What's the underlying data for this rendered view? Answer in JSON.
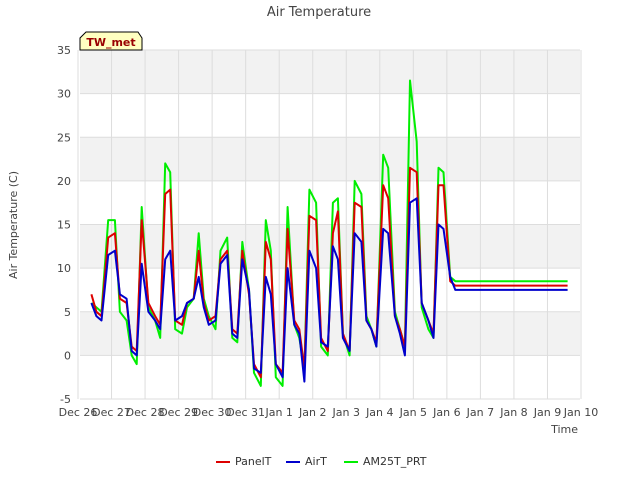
{
  "chart_data": {
    "type": "line",
    "title": "Air Temperature",
    "xlabel": "Time",
    "ylabel": "Air Temperature (C)",
    "ylim": [
      -5,
      35
    ],
    "xlim": [
      0,
      15
    ],
    "yticks": [
      -5,
      0,
      5,
      10,
      15,
      20,
      25,
      30,
      35
    ],
    "x_ticks": [
      "Dec 26",
      "Dec 27",
      "Dec 28",
      "Dec 29",
      "Dec 30",
      "Dec 31",
      "Jan 1",
      "Jan 2",
      "Jan 3",
      "Jan 4",
      "Jan 5",
      "Jan 6",
      "Jan 7",
      "Jan 8",
      "Jan 9",
      "Jan 10"
    ],
    "grid": true,
    "legend_position": "bottom",
    "annotation": "TW_met",
    "x": [
      0.4,
      0.55,
      0.7,
      0.9,
      1.1,
      1.25,
      1.45,
      1.6,
      1.75,
      1.9,
      2.1,
      2.3,
      2.45,
      2.6,
      2.75,
      2.9,
      3.1,
      3.25,
      3.45,
      3.6,
      3.75,
      3.9,
      4.1,
      4.25,
      4.45,
      4.6,
      4.75,
      4.9,
      5.1,
      5.25,
      5.45,
      5.6,
      5.75,
      5.9,
      6.1,
      6.25,
      6.45,
      6.6,
      6.75,
      6.9,
      7.1,
      7.25,
      7.45,
      7.6,
      7.75,
      7.9,
      8.1,
      8.25,
      8.45,
      8.6,
      8.75,
      8.9,
      9.1,
      9.25,
      9.45,
      9.6,
      9.75,
      9.9,
      10.1,
      10.25,
      10.45,
      10.6,
      10.75,
      10.9,
      11.1,
      11.25,
      11.45,
      11.6,
      11.75,
      11.9,
      12.1,
      12.25,
      12.45,
      12.6,
      12.75,
      12.9,
      13.1,
      13.25,
      13.45,
      13.6,
      13.75,
      13.9,
      14.1,
      14.25,
      14.45,
      14.6
    ],
    "series": [
      {
        "name": "PanelT",
        "color": "#dd0000",
        "values": [
          7.0,
          5.0,
          4.5,
          13.5,
          14.0,
          6.5,
          6.0,
          1.0,
          0.5,
          15.5,
          6.0,
          4.5,
          3.5,
          18.5,
          19.0,
          4.0,
          3.5,
          6.0,
          6.5,
          12.0,
          6.0,
          4.0,
          4.5,
          11.0,
          12.0,
          3.0,
          2.5,
          12.0,
          7.0,
          -1.0,
          -2.5,
          13.0,
          11.0,
          -1.0,
          -2.0,
          14.5,
          4.0,
          3.0,
          -1.5,
          16.0,
          15.5,
          2.0,
          0.5,
          14.0,
          16.5,
          2.5,
          0.5,
          17.5,
          17.0,
          4.0,
          3.0,
          1.5,
          19.5,
          18.0,
          4.5,
          3.0,
          1.0,
          21.5,
          21.0,
          6.0,
          4.0,
          2.5,
          19.5,
          19.5,
          8.5,
          8.0,
          8,
          8,
          8,
          8,
          8,
          8,
          8,
          8,
          8,
          8,
          8,
          8,
          8,
          8,
          8,
          8,
          8,
          8,
          8,
          8
        ]
      },
      {
        "name": "AirT",
        "color": "#0000cc",
        "values": [
          6.0,
          4.5,
          4.0,
          11.5,
          12.0,
          7.0,
          6.5,
          0.5,
          0.0,
          10.5,
          5.0,
          4.0,
          3.0,
          11.0,
          12.0,
          4.0,
          4.5,
          6.0,
          6.5,
          9.0,
          5.5,
          3.5,
          4.0,
          10.5,
          11.5,
          2.5,
          2.0,
          11.0,
          7.5,
          -1.5,
          -2.0,
          9.0,
          7.0,
          -1.0,
          -2.5,
          10.0,
          3.5,
          2.5,
          -3.0,
          12.0,
          10.0,
          1.5,
          1.0,
          12.5,
          11.0,
          2.0,
          0.5,
          14.0,
          13.0,
          4.0,
          3.0,
          1.0,
          14.5,
          14.0,
          4.5,
          2.5,
          0.0,
          17.5,
          18.0,
          6.0,
          4.0,
          2.0,
          15.0,
          14.5,
          9.0,
          7.5,
          7.5,
          7.5,
          7.5,
          7.5,
          7.5,
          7.5,
          7.5,
          7.5,
          7.5,
          7.5,
          7.5,
          7.5,
          7.5,
          7.5,
          7.5,
          7.5,
          7.5,
          7.5,
          7.5,
          7.5
        ]
      },
      {
        "name": "AM25T_PRT",
        "color": "#00ee00",
        "values": [
          6.0,
          5.5,
          5.0,
          15.5,
          15.5,
          5.0,
          4.0,
          0.0,
          -1.0,
          17.0,
          5.5,
          4.0,
          2.0,
          22.0,
          21.0,
          3.0,
          2.5,
          5.5,
          6.5,
          14.0,
          6.5,
          4.5,
          3.0,
          12.0,
          13.5,
          2.0,
          1.5,
          13.0,
          7.5,
          -2.0,
          -3.5,
          15.5,
          12.0,
          -2.5,
          -3.5,
          17.0,
          3.5,
          2.0,
          -1.5,
          19.0,
          17.5,
          1.0,
          0.0,
          17.5,
          18.0,
          2.5,
          0.0,
          20.0,
          18.5,
          4.5,
          3.0,
          1.0,
          23.0,
          21.5,
          5.0,
          3.0,
          1.0,
          31.5,
          24.5,
          5.5,
          3.0,
          2.0,
          21.5,
          21.0,
          9.0,
          8.5,
          8.5,
          8.5,
          8.5,
          8.5,
          8.5,
          8.5,
          8.5,
          8.5,
          8.5,
          8.5,
          8.5,
          8.5,
          8.5,
          8.5,
          8.5,
          8.5,
          8.5,
          8.5,
          8.5,
          8.5
        ]
      }
    ]
  }
}
